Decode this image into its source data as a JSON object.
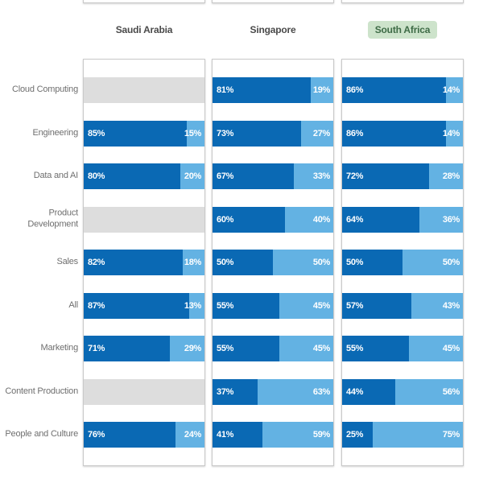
{
  "chart_data": {
    "type": "bar",
    "subtype": "horizontal-stacked-100pct-small-multiples",
    "value_suffix": "%",
    "categories": [
      "Cloud Computing",
      "Engineering",
      "Data and AI",
      "Product Development",
      "Sales",
      "All",
      "Marketing",
      "Content Production",
      "People and Culture"
    ],
    "category_lines": [
      [
        "Cloud Computing"
      ],
      [
        "Engineering"
      ],
      [
        "Data and AI"
      ],
      [
        "Product",
        "Development"
      ],
      [
        "Sales"
      ],
      [
        "All"
      ],
      [
        "Marketing"
      ],
      [
        "Content Production"
      ],
      [
        "People and Culture"
      ]
    ],
    "legend_position": "none",
    "grid": false,
    "panels": [
      {
        "title": "Saudi Arabia",
        "highlighted": false,
        "series": [
          {
            "name": "primary",
            "values": [
              null,
              85,
              80,
              null,
              82,
              87,
              71,
              null,
              76
            ]
          },
          {
            "name": "secondary",
            "values": [
              null,
              15,
              20,
              null,
              18,
              13,
              29,
              null,
              24
            ]
          }
        ]
      },
      {
        "title": "Singapore",
        "highlighted": false,
        "series": [
          {
            "name": "primary",
            "values": [
              81,
              73,
              67,
              60,
              50,
              55,
              55,
              37,
              41
            ]
          },
          {
            "name": "secondary",
            "values": [
              19,
              27,
              33,
              40,
              50,
              45,
              45,
              63,
              59
            ]
          }
        ]
      },
      {
        "title": "South Africa",
        "highlighted": true,
        "series": [
          {
            "name": "primary",
            "values": [
              86,
              86,
              72,
              64,
              50,
              57,
              55,
              44,
              25
            ]
          },
          {
            "name": "secondary",
            "values": [
              14,
              14,
              28,
              36,
              50,
              43,
              45,
              56,
              75
            ]
          }
        ]
      }
    ]
  },
  "colors": {
    "primary": "#0a69b4",
    "secondary": "#63b2e3",
    "no_data": "#dddddd",
    "panel_border": "#c9c9c9",
    "header_text": "#4a4a4a",
    "label_text": "#6f6f6f",
    "highlight_bg": "#cde3cb",
    "highlight_text": "#3e6b46",
    "bar_label": "#ffffff"
  },
  "icons": {}
}
